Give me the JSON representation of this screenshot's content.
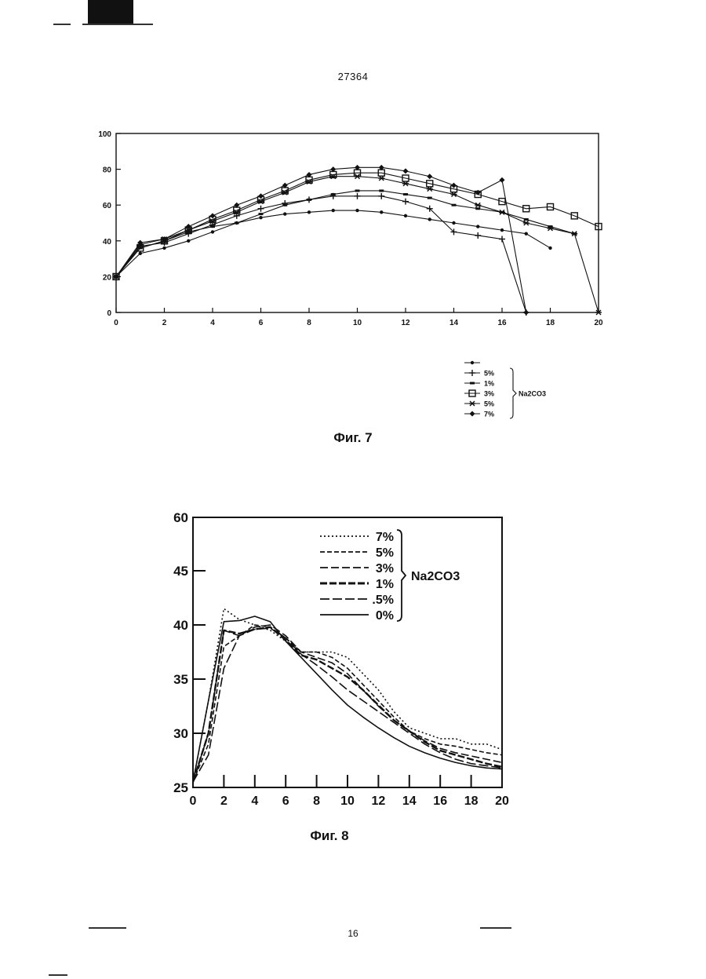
{
  "page": {
    "number_top": "27364",
    "number_bottom": "16"
  },
  "colors": {
    "ink": "#111111",
    "paper": "#ffffff"
  },
  "figures": [
    {
      "caption": "Фиг. 7"
    },
    {
      "caption": "Фиг. 8"
    }
  ],
  "chart_data": [
    {
      "type": "line",
      "title": "",
      "xlabel": "",
      "ylabel": "",
      "xlim": [
        0,
        20
      ],
      "ylim": [
        0,
        100
      ],
      "x_ticks": [
        "0",
        "2",
        "4",
        "6",
        "8",
        "10",
        "12",
        "14",
        "16",
        "18",
        "20"
      ],
      "y_ticks": [
        "0",
        "20",
        "40",
        "60",
        "80",
        "100"
      ],
      "grid": false,
      "legend_group_label": "Na2CO3",
      "series": [
        {
          "name": "",
          "marker": "dot",
          "x": [
            0,
            1,
            2,
            3,
            4,
            5,
            6,
            7,
            8,
            9,
            10,
            11,
            12,
            13,
            14,
            15,
            16,
            17,
            18
          ],
          "y": [
            20,
            33,
            36,
            40,
            45,
            50,
            53,
            55,
            56,
            57,
            57,
            56,
            54,
            52,
            50,
            48,
            46,
            44,
            36
          ]
        },
        {
          "name": "5%",
          "marker": "plus",
          "x": [
            0,
            1,
            2,
            3,
            4,
            5,
            6,
            7,
            8,
            9,
            10,
            11,
            12,
            13,
            14,
            15,
            16,
            17
          ],
          "y": [
            20,
            37,
            39,
            44,
            49,
            54,
            58,
            61,
            63,
            65,
            65,
            65,
            62,
            58,
            45,
            43,
            41,
            0
          ]
        },
        {
          "name": "1%",
          "marker": "dash",
          "x": [
            0,
            1,
            2,
            3,
            4,
            5,
            6,
            7,
            8,
            9,
            10,
            11,
            12,
            13,
            14,
            15,
            16,
            17,
            18,
            19
          ],
          "y": [
            20,
            36,
            40,
            45,
            48,
            50,
            55,
            60,
            63,
            66,
            68,
            68,
            66,
            64,
            60,
            58,
            56,
            52,
            48,
            44
          ]
        },
        {
          "name": "3%",
          "marker": "square",
          "x": [
            0,
            1,
            2,
            3,
            4,
            5,
            6,
            7,
            8,
            9,
            10,
            11,
            12,
            13,
            14,
            15,
            16,
            17,
            18,
            19,
            20
          ],
          "y": [
            20,
            36,
            40,
            46,
            52,
            57,
            63,
            68,
            74,
            77,
            78,
            78,
            75,
            72,
            69,
            66,
            62,
            58,
            59,
            54,
            48
          ]
        },
        {
          "name": "5%",
          "marker": "star",
          "x": [
            0,
            1,
            2,
            3,
            4,
            5,
            6,
            7,
            8,
            9,
            10,
            11,
            12,
            13,
            14,
            15,
            16,
            17,
            18,
            19,
            20
          ],
          "y": [
            20,
            38,
            41,
            46,
            51,
            56,
            62,
            67,
            73,
            76,
            76,
            75,
            72,
            69,
            66,
            60,
            56,
            50,
            47,
            44,
            0
          ]
        },
        {
          "name": "7%",
          "marker": "diamond",
          "x": [
            0,
            1,
            2,
            3,
            4,
            5,
            6,
            7,
            8,
            9,
            10,
            11,
            12,
            13,
            14,
            15,
            16,
            17
          ],
          "y": [
            20,
            39,
            41,
            48,
            54,
            60,
            65,
            71,
            77,
            80,
            81,
            81,
            79,
            76,
            71,
            67,
            74,
            0
          ]
        }
      ]
    },
    {
      "type": "line",
      "title": "",
      "xlabel": "",
      "ylabel": "",
      "xlim": [
        0,
        20
      ],
      "ylim": [
        25,
        60
      ],
      "x_ticks": [
        "0",
        "2",
        "4",
        "6",
        "8",
        "10",
        "12",
        "14",
        "16",
        "18",
        "20"
      ],
      "y_ticks": [
        "25",
        "30",
        "35",
        "40",
        "45",
        "60"
      ],
      "grid": false,
      "legend_group_label": "Na2CO3",
      "series": [
        {
          "name": "7%",
          "dash": "2,3",
          "x": [
            0,
            1,
            2,
            3,
            4,
            5,
            6,
            7,
            8,
            9,
            10,
            11,
            12,
            13,
            14,
            15,
            16,
            17,
            18,
            19,
            20
          ],
          "y": [
            25.5,
            33,
            41.5,
            40.5,
            40,
            39.5,
            38.5,
            37.5,
            37.5,
            37.5,
            37,
            35.5,
            34,
            32,
            30.5,
            30,
            29.5,
            29.5,
            29,
            29,
            28.5
          ]
        },
        {
          "name": "5%",
          "dash": "6,3",
          "x": [
            0,
            1,
            2,
            3,
            4,
            5,
            6,
            7,
            8,
            9,
            10,
            11,
            12,
            13,
            14,
            15,
            16,
            17,
            18,
            19,
            20
          ],
          "y": [
            25.5,
            29,
            38,
            39,
            40,
            39.8,
            38.8,
            37.5,
            37.5,
            37,
            36,
            34.5,
            33,
            31.5,
            30.2,
            29.5,
            29,
            28.8,
            28.5,
            28.2,
            28
          ]
        },
        {
          "name": "3%",
          "dash": "10,4",
          "x": [
            0,
            1,
            2,
            3,
            4,
            5,
            6,
            7,
            8,
            9,
            10,
            11,
            12,
            13,
            14,
            15,
            16,
            17,
            18,
            19,
            20
          ],
          "y": [
            25.5,
            30,
            39.5,
            39,
            39.8,
            40,
            39,
            37.5,
            37,
            36.5,
            35.5,
            34,
            32.5,
            31.2,
            30.2,
            29.3,
            28.6,
            28.2,
            27.9,
            27.6,
            27.3
          ]
        },
        {
          "name": "1%",
          "dash": "9,3",
          "bold": true,
          "x": [
            0,
            1,
            2,
            3,
            4,
            5,
            6,
            7,
            8,
            9,
            10,
            11,
            12,
            13,
            14,
            15,
            16,
            17,
            18,
            19,
            20
          ],
          "y": [
            25.5,
            30,
            39.5,
            39.2,
            39.6,
            39.8,
            38.6,
            37.2,
            36.8,
            36,
            35.2,
            34,
            32.6,
            31.2,
            30.2,
            29.2,
            28.4,
            28,
            27.6,
            27.2,
            26.9
          ]
        },
        {
          "name": ".5%",
          "dash": "12,4",
          "x": [
            0,
            1,
            2,
            3,
            4,
            5,
            6,
            7,
            8,
            9,
            10,
            11,
            12,
            13,
            14,
            15,
            16,
            17,
            18,
            19,
            20
          ],
          "y": [
            25.5,
            28,
            36,
            39,
            39.6,
            39.7,
            38.8,
            37.3,
            36.3,
            35.2,
            34,
            33,
            32,
            31,
            30,
            29,
            28.2,
            27.6,
            27.2,
            27,
            26.8
          ]
        },
        {
          "name": "0%",
          "dash": "",
          "x": [
            0,
            1,
            2,
            3,
            4,
            5,
            6,
            7,
            8,
            9,
            10,
            11,
            12,
            13,
            14,
            15,
            16,
            17,
            18,
            19,
            20
          ],
          "y": [
            25.5,
            33,
            40.3,
            40.4,
            40.8,
            40.3,
            38.5,
            37,
            35.5,
            34,
            32.6,
            31.5,
            30.5,
            29.6,
            28.8,
            28.2,
            27.7,
            27.3,
            27,
            26.8,
            26.7
          ]
        }
      ]
    }
  ]
}
